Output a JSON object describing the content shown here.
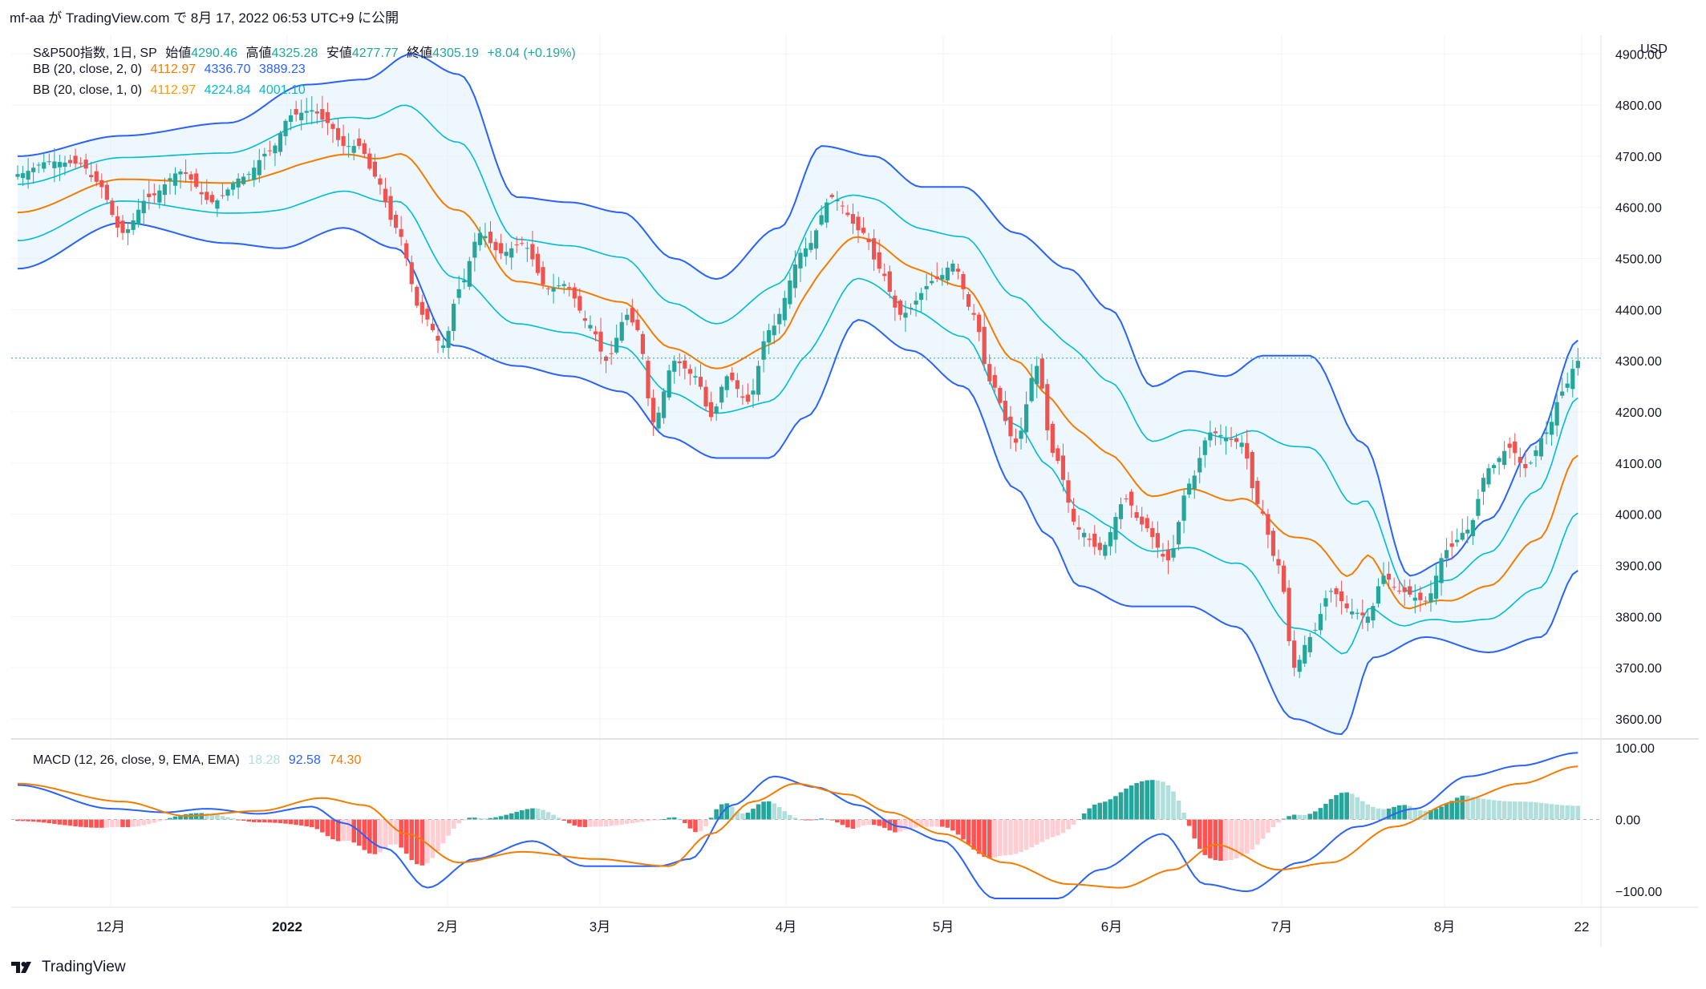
{
  "header": {
    "caption": "mf-aa が TradingView.com で 8月 17, 2022 06:53 UTC+9 に公開"
  },
  "footer": {
    "brand": "TradingView"
  },
  "currency": "USD",
  "colors": {
    "up": "#26a69a",
    "down": "#ef5350",
    "bb2": "#2962ff",
    "bb1": "#00bcd4",
    "basis": "#f57c00",
    "macd": "#2962ff",
    "signal": "#f57c00",
    "hist_up_strong": "#26a69a",
    "hist_up_weak": "#b2dfdb",
    "hist_down_strong": "#ff5252",
    "hist_down_weak": "#ffcdd2",
    "band_fill": "#e3f2fd"
  },
  "legend": {
    "main": {
      "symbol": "S&P500指数, 1日, SP",
      "open_label": "始値",
      "open": "4290.46",
      "high_label": "高値",
      "high": "4325.28",
      "low_label": "安値",
      "low": "4277.77",
      "close_label": "終値",
      "close": "4305.19",
      "change": "+8.04 (+0.19%)"
    },
    "bb2": {
      "label": "BB (20, close, 2, 0)",
      "basis": "4112.97",
      "upper": "4336.70",
      "lower": "3889.23"
    },
    "bb1": {
      "label": "BB (20, close, 1, 0)",
      "basis": "4112.97",
      "upper": "4224.84",
      "lower": "4001.10"
    },
    "macd": {
      "label": "MACD (12, 26, close, 9, EMA, EMA)",
      "hist": "18.28",
      "macd": "92.58",
      "signal": "74.30"
    }
  },
  "price_axis": {
    "ticks": [
      "4900.00",
      "4800.00",
      "4700.00",
      "4600.00",
      "4500.00",
      "4400.00",
      "4300.00",
      "4200.00",
      "4100.00",
      "4000.00",
      "3900.00",
      "3800.00",
      "3700.00",
      "3600.00"
    ]
  },
  "macd_axis": {
    "ticks": [
      "100.00",
      "0.00",
      "−100.00"
    ]
  },
  "time_axis": {
    "labels": [
      "12月",
      "2022",
      "2月",
      "3月",
      "4月",
      "5月",
      "6月",
      "7月",
      "8月",
      "22"
    ]
  },
  "chart_data": {
    "type": "candlestick",
    "title": "S&P500指数, 1日, SP",
    "ylabel": "USD",
    "ylim": [
      3560,
      4920
    ],
    "macd_ylim": [
      -120,
      110
    ],
    "keyframes": [
      [
        0,
        4665
      ],
      [
        6,
        4690
      ],
      [
        12,
        4685
      ],
      [
        15,
        4650
      ],
      [
        20,
        4550
      ],
      [
        25,
        4620
      ],
      [
        31,
        4670
      ],
      [
        37,
        4610
      ],
      [
        43,
        4660
      ],
      [
        48,
        4710
      ],
      [
        52,
        4780
      ],
      [
        56,
        4790
      ],
      [
        59,
        4765
      ],
      [
        62,
        4720
      ],
      [
        65,
        4720
      ],
      [
        68,
        4660
      ],
      [
        72,
        4560
      ],
      [
        77,
        4390
      ],
      [
        81,
        4330
      ],
      [
        84,
        4440
      ],
      [
        88,
        4550
      ],
      [
        92,
        4510
      ],
      [
        96,
        4530
      ],
      [
        101,
        4440
      ],
      [
        104,
        4450
      ],
      [
        109,
        4370
      ],
      [
        112,
        4300
      ],
      [
        116,
        4390
      ],
      [
        118,
        4360
      ],
      [
        121,
        4180
      ],
      [
        125,
        4300
      ],
      [
        129,
        4270
      ],
      [
        132,
        4190
      ],
      [
        135,
        4270
      ],
      [
        139,
        4220
      ],
      [
        143,
        4360
      ],
      [
        150,
        4520
      ],
      [
        155,
        4620
      ],
      [
        161,
        4550
      ],
      [
        164,
        4480
      ],
      [
        168,
        4390
      ],
      [
        175,
        4460
      ],
      [
        178,
        4490
      ],
      [
        182,
        4390
      ],
      [
        185,
        4260
      ],
      [
        190,
        4140
      ],
      [
        194,
        4290
      ],
      [
        197,
        4120
      ],
      [
        202,
        3970
      ],
      [
        206,
        3930
      ],
      [
        211,
        4030
      ],
      [
        214,
        3980
      ],
      [
        219,
        3910
      ],
      [
        223,
        4060
      ],
      [
        227,
        4160
      ],
      [
        233,
        4140
      ],
      [
        236,
        4020
      ],
      [
        240,
        3900
      ],
      [
        243,
        3700
      ],
      [
        246,
        3760
      ],
      [
        250,
        3850
      ],
      [
        254,
        3810
      ],
      [
        257,
        3800
      ],
      [
        260,
        3880
      ],
      [
        263,
        3850
      ],
      [
        268,
        3830
      ],
      [
        272,
        3930
      ],
      [
        276,
        3970
      ],
      [
        280,
        4090
      ],
      [
        284,
        4130
      ],
      [
        287,
        4090
      ],
      [
        291,
        4160
      ],
      [
        294,
        4240
      ],
      [
        297,
        4300
      ]
    ],
    "bb_upper_keyframes": [
      [
        0,
        4700
      ],
      [
        20,
        4740
      ],
      [
        40,
        4765
      ],
      [
        55,
        4840
      ],
      [
        66,
        4850
      ],
      [
        75,
        4900
      ],
      [
        84,
        4860
      ],
      [
        95,
        4620
      ],
      [
        105,
        4610
      ],
      [
        115,
        4590
      ],
      [
        125,
        4500
      ],
      [
        133,
        4460
      ],
      [
        145,
        4560
      ],
      [
        153,
        4720
      ],
      [
        163,
        4700
      ],
      [
        172,
        4640
      ],
      [
        180,
        4640
      ],
      [
        190,
        4550
      ],
      [
        200,
        4480
      ],
      [
        208,
        4400
      ],
      [
        216,
        4250
      ],
      [
        223,
        4280
      ],
      [
        230,
        4270
      ],
      [
        237,
        4310
      ],
      [
        246,
        4310
      ],
      [
        256,
        4140
      ],
      [
        265,
        3880
      ],
      [
        272,
        3910
      ],
      [
        280,
        3990
      ],
      [
        289,
        4140
      ],
      [
        297,
        4340
      ]
    ],
    "bb_lower_keyframes": [
      [
        0,
        4480
      ],
      [
        20,
        4570
      ],
      [
        40,
        4530
      ],
      [
        50,
        4520
      ],
      [
        62,
        4560
      ],
      [
        72,
        4520
      ],
      [
        83,
        4330
      ],
      [
        95,
        4290
      ],
      [
        105,
        4270
      ],
      [
        115,
        4240
      ],
      [
        124,
        4150
      ],
      [
        133,
        4110
      ],
      [
        143,
        4110
      ],
      [
        150,
        4190
      ],
      [
        160,
        4380
      ],
      [
        170,
        4320
      ],
      [
        180,
        4250
      ],
      [
        190,
        4050
      ],
      [
        196,
        3960
      ],
      [
        202,
        3860
      ],
      [
        212,
        3820
      ],
      [
        223,
        3820
      ],
      [
        232,
        3780
      ],
      [
        243,
        3600
      ],
      [
        252,
        3570
      ],
      [
        258,
        3720
      ],
      [
        268,
        3760
      ],
      [
        280,
        3730
      ],
      [
        290,
        3760
      ],
      [
        297,
        3890
      ]
    ],
    "macd_keyframes": [
      [
        0,
        48
      ],
      [
        18,
        15
      ],
      [
        28,
        10
      ],
      [
        36,
        15
      ],
      [
        46,
        8
      ],
      [
        56,
        18
      ],
      [
        62,
        -5
      ],
      [
        70,
        -40
      ],
      [
        78,
        -95
      ],
      [
        87,
        -55
      ],
      [
        98,
        -30
      ],
      [
        108,
        -65
      ],
      [
        122,
        -65
      ],
      [
        128,
        -55
      ],
      [
        136,
        20
      ],
      [
        144,
        60
      ],
      [
        152,
        45
      ],
      [
        160,
        20
      ],
      [
        168,
        -10
      ],
      [
        176,
        -30
      ],
      [
        186,
        -110
      ],
      [
        198,
        -110
      ],
      [
        206,
        -70
      ],
      [
        218,
        -20
      ],
      [
        226,
        -90
      ],
      [
        234,
        -100
      ],
      [
        244,
        -60
      ],
      [
        255,
        -10
      ],
      [
        266,
        15
      ],
      [
        276,
        60
      ],
      [
        286,
        75
      ],
      [
        297,
        93
      ]
    ],
    "signal_keyframes": [
      [
        0,
        50
      ],
      [
        20,
        25
      ],
      [
        32,
        5
      ],
      [
        46,
        12
      ],
      [
        58,
        30
      ],
      [
        66,
        20
      ],
      [
        74,
        -20
      ],
      [
        84,
        -60
      ],
      [
        96,
        -45
      ],
      [
        110,
        -55
      ],
      [
        124,
        -65
      ],
      [
        132,
        -20
      ],
      [
        140,
        25
      ],
      [
        148,
        50
      ],
      [
        158,
        35
      ],
      [
        166,
        10
      ],
      [
        176,
        -20
      ],
      [
        188,
        -60
      ],
      [
        200,
        -90
      ],
      [
        210,
        -95
      ],
      [
        220,
        -70
      ],
      [
        228,
        -35
      ],
      [
        240,
        -70
      ],
      [
        250,
        -60
      ],
      [
        262,
        -10
      ],
      [
        274,
        25
      ],
      [
        286,
        50
      ],
      [
        297,
        74
      ]
    ]
  }
}
